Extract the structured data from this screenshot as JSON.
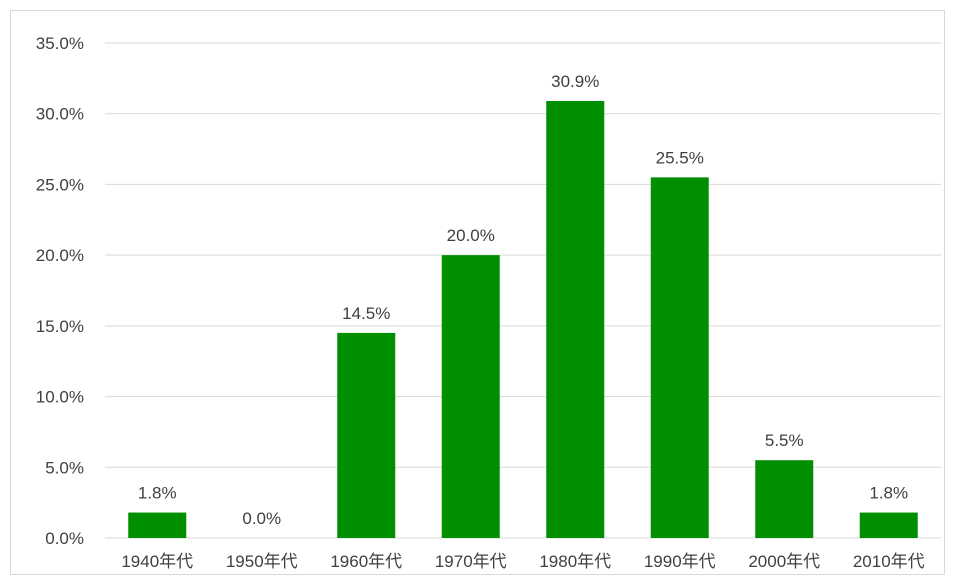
{
  "chart_data": {
    "type": "bar",
    "categories": [
      "1940年代",
      "1950年代",
      "1960年代",
      "1970年代",
      "1980年代",
      "1990年代",
      "2000年代",
      "2010年代"
    ],
    "values": [
      1.8,
      0.0,
      14.5,
      20.0,
      30.9,
      25.5,
      5.5,
      1.8
    ],
    "data_labels": [
      "1.8%",
      "0.0%",
      "14.5%",
      "20.0%",
      "30.9%",
      "25.5%",
      "5.5%",
      "1.8%"
    ],
    "y_tick_labels": [
      "0.0%",
      "5.0%",
      "10.0%",
      "15.0%",
      "20.0%",
      "25.0%",
      "30.0%",
      "35.0%"
    ],
    "y_ticks": [
      0,
      5,
      10,
      15,
      20,
      25,
      30,
      35
    ],
    "ylim": [
      0,
      35
    ],
    "title": "",
    "xlabel": "",
    "ylabel": "",
    "grid": true,
    "legend": "none",
    "colors": {
      "bar": "#008f00",
      "grid": "#d9d9d9",
      "text": "#404040",
      "frame": "#d9d9d9"
    }
  }
}
